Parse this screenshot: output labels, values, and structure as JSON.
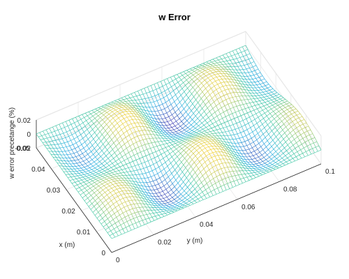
{
  "chart_data": {
    "type": "surface",
    "title": "w Error",
    "xlabel": "x (m)",
    "ylabel": "y (m)",
    "zlabel": "w error precetange (%)",
    "xlim": [
      0,
      0.05
    ],
    "ylim": [
      0,
      0.1
    ],
    "zlim": [
      -0.02,
      0.02
    ],
    "x_ticks": [
      "0",
      "0.01",
      "0.02",
      "0.03",
      "0.04",
      "0.05"
    ],
    "y_ticks": [
      "0",
      "0.02",
      "0.04",
      "0.06",
      "0.08",
      "0.1"
    ],
    "z_ticks": [
      "0.02",
      "0",
      "-0.02"
    ],
    "grid": true,
    "colormap": "parula",
    "mesh_style": "mesh (colored wireframe, white faces)",
    "surface_shape": "sinusoidal error field with 2 bumps along x and ~4.5 along y, amplitude about 0.02 %, zero on the edges",
    "colors": {
      "low": "#3e26a8",
      "mid_low": "#1aa9e0",
      "mid": "#36c4a0",
      "mid_high": "#c2c64a",
      "high": "#f9d023"
    }
  }
}
